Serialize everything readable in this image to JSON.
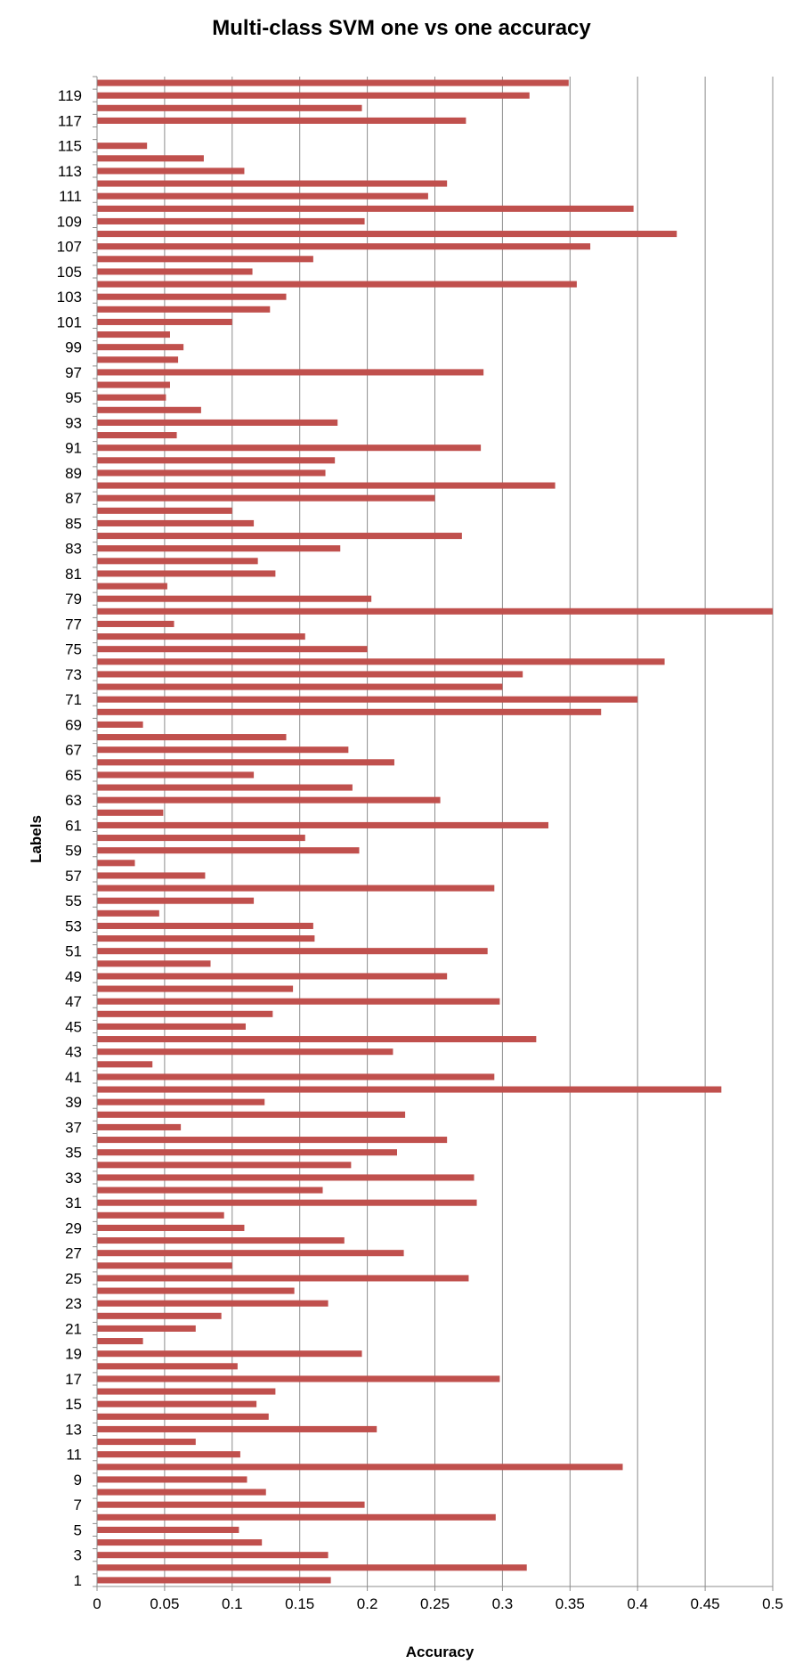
{
  "chart_data": {
    "type": "bar",
    "orientation": "horizontal",
    "title": "Multi-class SVM one vs one accuracy",
    "xlabel": "Accuracy",
    "ylabel": "Labels",
    "xlim": [
      0,
      0.5
    ],
    "x_ticks": [
      "0",
      "0.05",
      "0.1",
      "0.15",
      "0.2",
      "0.25",
      "0.3",
      "0.35",
      "0.4",
      "0.45",
      "0.5"
    ],
    "y_tick_labels": [
      "1",
      "3",
      "5",
      "7",
      "9",
      "11",
      "13",
      "15",
      "17",
      "19",
      "21",
      "23",
      "25",
      "27",
      "29",
      "31",
      "33",
      "35",
      "37",
      "39",
      "41",
      "43",
      "45",
      "47",
      "49",
      "51",
      "53",
      "55",
      "57",
      "59",
      "61",
      "63",
      "65",
      "67",
      "69",
      "71",
      "73",
      "75",
      "77",
      "79",
      "81",
      "83",
      "85",
      "87",
      "89",
      "91",
      "93",
      "95",
      "97",
      "99",
      "101",
      "103",
      "105",
      "107",
      "109",
      "111",
      "113",
      "115",
      "117",
      "119"
    ],
    "grid": "vertical",
    "bar_color": "#C0504D",
    "categories": [
      1,
      2,
      3,
      4,
      5,
      6,
      7,
      8,
      9,
      10,
      11,
      12,
      13,
      14,
      15,
      16,
      17,
      18,
      19,
      20,
      21,
      22,
      23,
      24,
      25,
      26,
      27,
      28,
      29,
      30,
      31,
      32,
      33,
      34,
      35,
      36,
      37,
      38,
      39,
      40,
      41,
      42,
      43,
      44,
      45,
      46,
      47,
      48,
      49,
      50,
      51,
      52,
      53,
      54,
      55,
      56,
      57,
      58,
      59,
      60,
      61,
      62,
      63,
      64,
      65,
      66,
      67,
      68,
      69,
      70,
      71,
      72,
      73,
      74,
      75,
      76,
      77,
      78,
      79,
      80,
      81,
      82,
      83,
      84,
      85,
      86,
      87,
      88,
      89,
      90,
      91,
      92,
      93,
      94,
      95,
      96,
      97,
      98,
      99,
      100,
      101,
      102,
      103,
      104,
      105,
      106,
      107,
      108,
      109,
      110,
      111,
      112,
      113,
      114,
      115,
      116,
      117,
      118,
      119,
      120
    ],
    "values": [
      0.173,
      0.318,
      0.171,
      0.122,
      0.105,
      0.295,
      0.198,
      0.125,
      0.111,
      0.389,
      0.106,
      0.073,
      0.207,
      0.127,
      0.118,
      0.132,
      0.298,
      0.104,
      0.196,
      0.034,
      0.073,
      0.092,
      0.171,
      0.146,
      0.275,
      0.1,
      0.227,
      0.183,
      0.109,
      0.094,
      0.281,
      0.167,
      0.279,
      0.188,
      0.222,
      0.259,
      0.062,
      0.228,
      0.124,
      0.462,
      0.294,
      0.041,
      0.219,
      0.325,
      0.11,
      0.13,
      0.298,
      0.145,
      0.259,
      0.084,
      0.289,
      0.161,
      0.16,
      0.046,
      0.116,
      0.294,
      0.08,
      0.028,
      0.194,
      0.154,
      0.334,
      0.049,
      0.254,
      0.189,
      0.116,
      0.22,
      0.186,
      0.14,
      0.034,
      0.373,
      0.4,
      0.3,
      0.315,
      0.42,
      0.2,
      0.154,
      0.057,
      0.5,
      0.203,
      0.052,
      0.132,
      0.119,
      0.18,
      0.27,
      0.116,
      0.1,
      0.25,
      0.339,
      0.169,
      0.176,
      0.284,
      0.059,
      0.178,
      0.077,
      0.051,
      0.054,
      0.286,
      0.06,
      0.064,
      0.054,
      0.1,
      0.128,
      0.14,
      0.355,
      0.115,
      0.16,
      0.365,
      0.429,
      0.198,
      0.397,
      0.245,
      0.259,
      0.109,
      0.079,
      0.037,
      0.0,
      0.273,
      0.196,
      0.32,
      0.349
    ]
  }
}
